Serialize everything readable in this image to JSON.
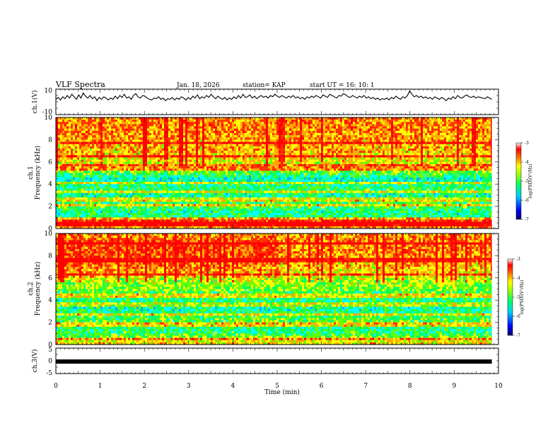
{
  "header": {
    "title": "VLF Spectra",
    "date": "Jan. 18, 2026",
    "station": "station= KAP",
    "start": "start  UT =   16: 10: 1"
  },
  "colors": {
    "colormap": [
      "#000066",
      "#0000ff",
      "#00aaff",
      "#00ffff",
      "#00ff66",
      "#66ff00",
      "#ffff00",
      "#ffaa00",
      "#ff3300",
      "#ff0000",
      "#ffffff"
    ],
    "trace": "#000000"
  },
  "chart_data": [
    {
      "type": "line",
      "name": "ch1-waveform",
      "ylabel": "ch.1(V)",
      "ylim": [
        -10,
        10
      ],
      "yticks": [
        -10,
        10
      ],
      "xlim": [
        0,
        9.85
      ],
      "samples": [
        2,
        3.5,
        1.5,
        4,
        2.5,
        5,
        3,
        6,
        4,
        2,
        5.5,
        3,
        7,
        4.5,
        3,
        5,
        2.5,
        4,
        1,
        3.5,
        2,
        4,
        3,
        1.5,
        3,
        2,
        4.5,
        2.5,
        5,
        3.5,
        6,
        3,
        4,
        2,
        5,
        6.5,
        4,
        3,
        5,
        4.5,
        3,
        2,
        1.5,
        3,
        2.5,
        4,
        2,
        3,
        1,
        2.5,
        2,
        3.5,
        1.5,
        3,
        2,
        4,
        3,
        1.5,
        3.5,
        2,
        4.5,
        3,
        5.5,
        2.5,
        4,
        3,
        5,
        3.5,
        6,
        4,
        2.5,
        4.5,
        3,
        2,
        3.5,
        1.5,
        3,
        2,
        4,
        2.5,
        5,
        3,
        6,
        3.5,
        4,
        5.5,
        3,
        4.5,
        2.5,
        4,
        5,
        3.5,
        4.5,
        3,
        5,
        4,
        6,
        4.5,
        3.5,
        5,
        4,
        3,
        4.5,
        3.5,
        5,
        3,
        4,
        2.5,
        3.5,
        2,
        4,
        3,
        4.5,
        3.5,
        5,
        4,
        3,
        5.5,
        4.5,
        3.5,
        6,
        5,
        4,
        3,
        5,
        4.5,
        6.5,
        5.5,
        4,
        3.5,
        5,
        4,
        3,
        4.5,
        3.5,
        5,
        3,
        4,
        2.5,
        3.5,
        2,
        3,
        1.5,
        2.5,
        2,
        3,
        1.5,
        3.5,
        2.5,
        4.5,
        3,
        2,
        4,
        3,
        5,
        8.5,
        6,
        4,
        5,
        3.5,
        4.5,
        3,
        4,
        2.5,
        3.5,
        2,
        4,
        3,
        2,
        3.5,
        2.5,
        1,
        3,
        2,
        4,
        2.5,
        5,
        3.5,
        3,
        4.5,
        5.5,
        4,
        3.5,
        4.5,
        3,
        4,
        3.5,
        3,
        2.5,
        4,
        3,
        2
      ],
      "series_count": 1
    },
    {
      "type": "heatmap",
      "name": "ch1-spectrogram",
      "ylabel_top": "ch.1",
      "ylabel": "Frequency (kHz)",
      "ylim": [
        0,
        10
      ],
      "yticks": [
        0,
        2,
        4,
        6,
        8,
        10
      ],
      "xlim": [
        0,
        9.85
      ],
      "colorbar": {
        "label": "log(PSD)(V²/Hz)",
        "range": [
          -7,
          -3
        ],
        "ticks": [
          -3,
          -4,
          -5,
          -6,
          -7
        ]
      },
      "band_levels_kHz": [
        [
          0.0,
          -4.0
        ],
        [
          0.5,
          -3.6
        ],
        [
          1.0,
          -5.2
        ],
        [
          1.5,
          -5.3
        ],
        [
          2.0,
          -5.0
        ],
        [
          2.5,
          -5.1
        ],
        [
          3.0,
          -5.4
        ],
        [
          3.5,
          -5.1
        ],
        [
          4.0,
          -5.3
        ],
        [
          4.5,
          -5.5
        ],
        [
          5.0,
          -4.9
        ],
        [
          5.5,
          -4.6
        ],
        [
          6.0,
          -4.4
        ],
        [
          6.5,
          -4.2
        ],
        [
          7.0,
          -4.1
        ],
        [
          8.0,
          -4.0
        ],
        [
          9.0,
          -3.9
        ],
        [
          10.0,
          -3.9
        ]
      ],
      "lines_kHz": [
        0.4,
        0.8,
        2.1,
        2.6,
        3.3,
        4.1,
        5.3,
        5.6,
        6.5,
        7.7
      ]
    },
    {
      "type": "heatmap",
      "name": "ch2-spectrogram",
      "ylabel_top": "ch.2",
      "ylabel": "Frequency (kHz)",
      "ylim": [
        0,
        10
      ],
      "yticks": [
        0,
        2,
        4,
        6,
        8,
        10
      ],
      "xlim": [
        0,
        9.85
      ],
      "colorbar": {
        "label": "log(PSD)(V²/Hz)",
        "range": [
          -7,
          -3
        ],
        "ticks": [
          -3,
          -4,
          -5,
          -6,
          -7
        ]
      },
      "band_levels_kHz": [
        [
          0.0,
          -4.2
        ],
        [
          0.5,
          -4.6
        ],
        [
          1.0,
          -5.1
        ],
        [
          1.5,
          -5.2
        ],
        [
          2.0,
          -4.9
        ],
        [
          2.5,
          -5.0
        ],
        [
          3.0,
          -5.3
        ],
        [
          3.5,
          -5.4
        ],
        [
          4.0,
          -5.2
        ],
        [
          4.5,
          -5.1
        ],
        [
          5.0,
          -4.8
        ],
        [
          5.5,
          -4.7
        ],
        [
          6.0,
          -4.5
        ],
        [
          6.5,
          -4.3
        ],
        [
          7.0,
          -4.1
        ],
        [
          8.0,
          -3.9
        ],
        [
          9.0,
          -3.8
        ],
        [
          10.0,
          -3.9
        ]
      ],
      "lines_kHz": [
        0.5,
        1.8,
        2.7,
        3.6,
        4.4,
        6.3,
        7.6,
        9.1
      ]
    },
    {
      "type": "line",
      "name": "ch3-waveform",
      "ylabel": "ch.3(V)",
      "ylim": [
        -5,
        5
      ],
      "yticks": [
        -5,
        0,
        5
      ],
      "xlim": [
        0,
        9.85
      ],
      "constant_value": -0.5
    }
  ],
  "xaxis": {
    "label": "Time (min)",
    "range": [
      0,
      10
    ],
    "ticks": [
      "0",
      "1",
      "2",
      "3",
      "4",
      "5",
      "6",
      "7",
      "8",
      "9",
      "10"
    ]
  }
}
